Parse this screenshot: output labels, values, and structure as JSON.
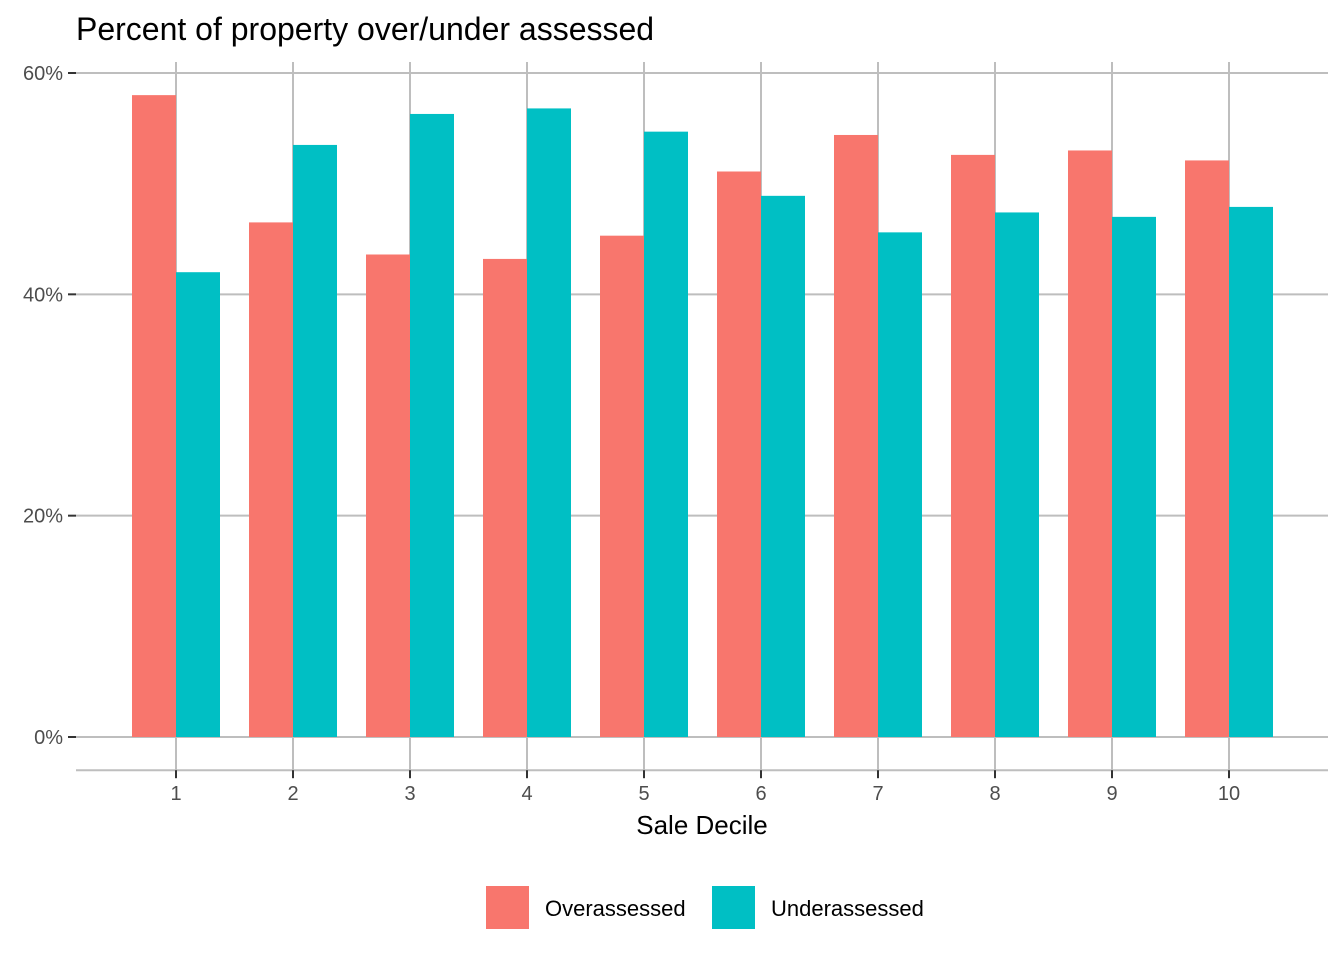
{
  "chart_data": {
    "type": "bar",
    "title": "Percent of property over/under assessed",
    "xlabel": "Sale Decile",
    "ylabel": "",
    "categories": [
      "1",
      "2",
      "3",
      "4",
      "5",
      "6",
      "7",
      "8",
      "9",
      "10"
    ],
    "series": [
      {
        "name": "Overassessed",
        "color": "#F8766D",
        "values": [
          58.0,
          46.5,
          43.6,
          43.2,
          45.3,
          51.1,
          54.4,
          52.6,
          53.0,
          52.1
        ]
      },
      {
        "name": "Underassessed",
        "color": "#00BFC4",
        "values": [
          42.0,
          53.5,
          56.3,
          56.8,
          54.7,
          48.9,
          45.6,
          47.4,
          47.0,
          47.9
        ]
      }
    ],
    "ylim": [
      -3,
      60
    ],
    "yticks": [
      0,
      20,
      40,
      60
    ],
    "ytick_labels": [
      "0%",
      "20%",
      "40%",
      "60%"
    ],
    "grid": true,
    "legend_position": "bottom"
  }
}
